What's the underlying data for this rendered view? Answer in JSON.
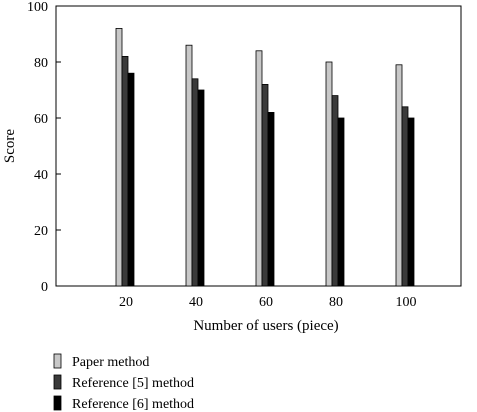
{
  "chart_data": {
    "type": "bar",
    "title": "",
    "xlabel": "Number of users (piece)",
    "ylabel": "Score",
    "ylim": [
      0,
      100
    ],
    "yticks": [
      0,
      20,
      40,
      60,
      80,
      100
    ],
    "categories": [
      "20",
      "40",
      "60",
      "80",
      "100"
    ],
    "grid": false,
    "legend_position": "bottom-left",
    "series": [
      {
        "name": "Paper method",
        "values": [
          92,
          86,
          84,
          80,
          79
        ],
        "color": "#c8c8c8"
      },
      {
        "name": "Reference [5] method",
        "values": [
          82,
          74,
          72,
          68,
          64
        ],
        "color": "#3a3a3a"
      },
      {
        "name": "Reference [6] method",
        "values": [
          76,
          70,
          62,
          60,
          60
        ],
        "color": "#000000"
      }
    ]
  }
}
